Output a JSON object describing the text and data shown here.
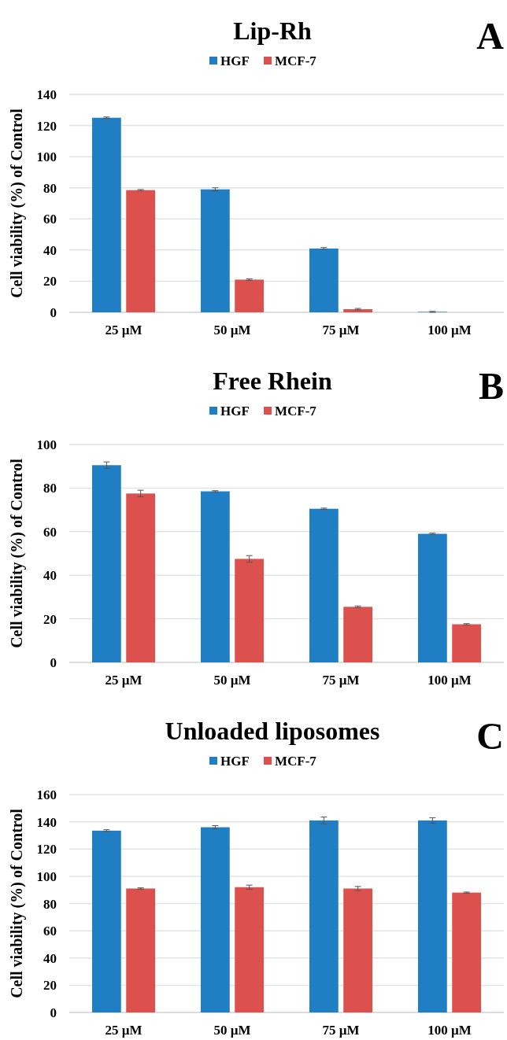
{
  "chart_data": [
    {
      "type": "bar",
      "title": "Lip-Rh",
      "ylabel": "Cell viability (%) of Control",
      "annotations": [
        "A"
      ],
      "categories": [
        "25 µM",
        "50 µM",
        "75 µM",
        "100 µM"
      ],
      "ylim": [
        0,
        140
      ],
      "yticks": [
        0,
        20,
        40,
        60,
        80,
        100,
        120,
        140
      ],
      "grid": "y",
      "legend": "top",
      "series": [
        {
          "name": "HGF",
          "color": "#1f7ec4",
          "values": [
            125,
            79,
            41,
            0.3
          ],
          "errors": [
            0.5,
            1,
            0.6,
            0.3
          ]
        },
        {
          "name": "MCF-7",
          "color": "#dc514d",
          "values": [
            78.5,
            21,
            2,
            0
          ],
          "errors": [
            0.4,
            0.5,
            0.5,
            null
          ]
        }
      ]
    },
    {
      "type": "bar",
      "title": "Free Rhein",
      "ylabel": "Cell viability (%) of Control",
      "annotations": [
        "B"
      ],
      "categories": [
        "25 µM",
        "50 µM",
        "75 µM",
        "100 µM"
      ],
      "ylim": [
        0,
        100
      ],
      "yticks": [
        0,
        20,
        40,
        60,
        80,
        100
      ],
      "grid": "y",
      "legend": "top",
      "series": [
        {
          "name": "HGF",
          "color": "#1f7ec4",
          "values": [
            90.5,
            78.5,
            70.5,
            59
          ],
          "errors": [
            1.5,
            0.3,
            0.3,
            0.3
          ]
        },
        {
          "name": "MCF-7",
          "color": "#dc514d",
          "values": [
            77.5,
            47.5,
            25.5,
            17.5
          ],
          "errors": [
            1.5,
            1.5,
            0.4,
            0.3
          ]
        }
      ]
    },
    {
      "type": "bar",
      "title": "Unloaded liposomes",
      "ylabel": "Cell viability (%) of Control",
      "annotations": [
        "C"
      ],
      "categories": [
        "25 µM",
        "50 µM",
        "75 µM",
        "100 µM"
      ],
      "ylim": [
        0,
        160
      ],
      "yticks": [
        0,
        20,
        40,
        60,
        80,
        100,
        120,
        140,
        160
      ],
      "grid": "y",
      "legend": "top",
      "series": [
        {
          "name": "HGF",
          "color": "#1f7ec4",
          "values": [
            133.5,
            136,
            141,
            141
          ],
          "errors": [
            0.7,
            1.2,
            2.5,
            2
          ]
        },
        {
          "name": "MCF-7",
          "color": "#dc514d",
          "values": [
            91,
            92,
            91,
            88
          ],
          "errors": [
            0.5,
            1.5,
            1.5,
            0.4
          ]
        }
      ]
    }
  ]
}
